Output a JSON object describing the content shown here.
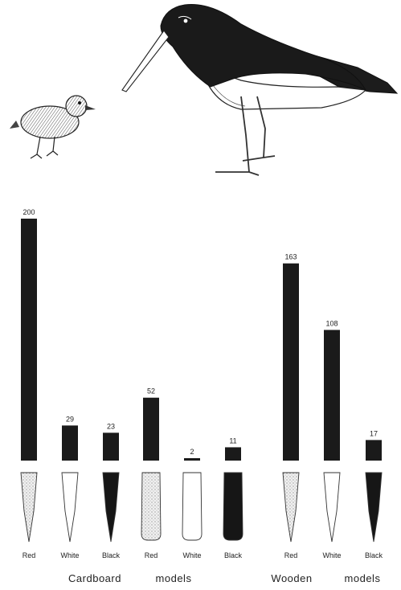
{
  "chart_data": {
    "type": "bar",
    "categories": [
      "Red",
      "White",
      "Black",
      "Red",
      "White",
      "Black",
      "Red",
      "White",
      "Black"
    ],
    "values": [
      200,
      29,
      23,
      52,
      2,
      11,
      163,
      108,
      17
    ],
    "groups": [
      {
        "label": "Cardboard models",
        "words": [
          "Cardboard",
          "models"
        ],
        "members": [
          0,
          1,
          2,
          3,
          4,
          5
        ]
      },
      {
        "label": "Wooden models",
        "words": [
          "Wooden",
          "models"
        ],
        "members": [
          6,
          7,
          8
        ]
      }
    ],
    "bill_models": [
      {
        "color": "Red",
        "fill": "stipple",
        "shape": "narrow"
      },
      {
        "color": "White",
        "fill": "white",
        "shape": "narrow"
      },
      {
        "color": "Black",
        "fill": "black",
        "shape": "narrow"
      },
      {
        "color": "Red",
        "fill": "stipple",
        "shape": "wide"
      },
      {
        "color": "White",
        "fill": "white",
        "shape": "wide"
      },
      {
        "color": "Black",
        "fill": "black",
        "shape": "wide"
      },
      {
        "color": "Red",
        "fill": "stipple",
        "shape": "narrow"
      },
      {
        "color": "White",
        "fill": "white",
        "shape": "narrow"
      },
      {
        "color": "Black",
        "fill": "black",
        "shape": "narrow"
      }
    ],
    "ylim": [
      0,
      200
    ],
    "grid": false,
    "legend": "none",
    "bar_color": "#1a1a1a",
    "title": "",
    "xlabel": "",
    "ylabel": ""
  },
  "illustration": {
    "icons": [
      "oystercatcher-chick-icon",
      "oystercatcher-adult-icon"
    ]
  }
}
